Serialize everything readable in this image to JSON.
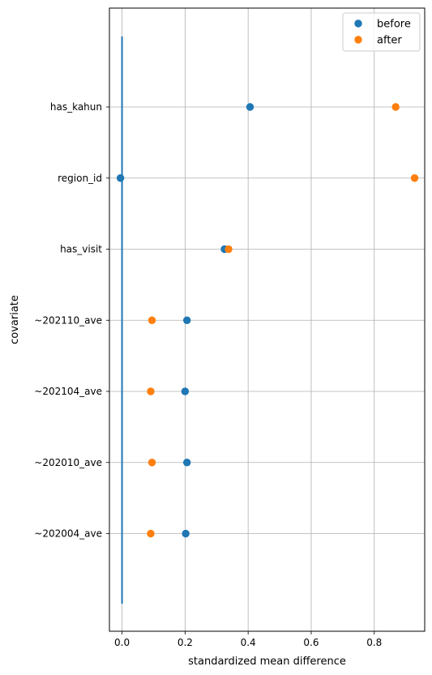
{
  "chart_data": {
    "type": "scatter",
    "xlabel": "standardized mean difference",
    "ylabel": "covariate",
    "xlim": [
      -0.04,
      0.96
    ],
    "x_ticks": [
      0.0,
      0.2,
      0.4,
      0.6,
      0.8
    ],
    "x_tick_labels": [
      "0.0",
      "0.2",
      "0.4",
      "0.6",
      "0.8"
    ],
    "categories": [
      "has_kahun",
      "region_id",
      "has_visit",
      "~202110_ave",
      "~202104_ave",
      "~202010_ave",
      "~202004_ave"
    ],
    "grid": true,
    "legend_position": "top-right",
    "reference_line": {
      "x": 0.0,
      "color": "#1f77b4"
    },
    "series": [
      {
        "name": "before",
        "color": "#1f77b4",
        "values": [
          0.406,
          -0.005,
          0.325,
          0.206,
          0.2,
          0.206,
          0.202
        ]
      },
      {
        "name": "after",
        "color": "#ff7f0e",
        "values": [
          0.868,
          0.928,
          0.338,
          0.095,
          0.091,
          0.095,
          0.091
        ]
      }
    ]
  }
}
